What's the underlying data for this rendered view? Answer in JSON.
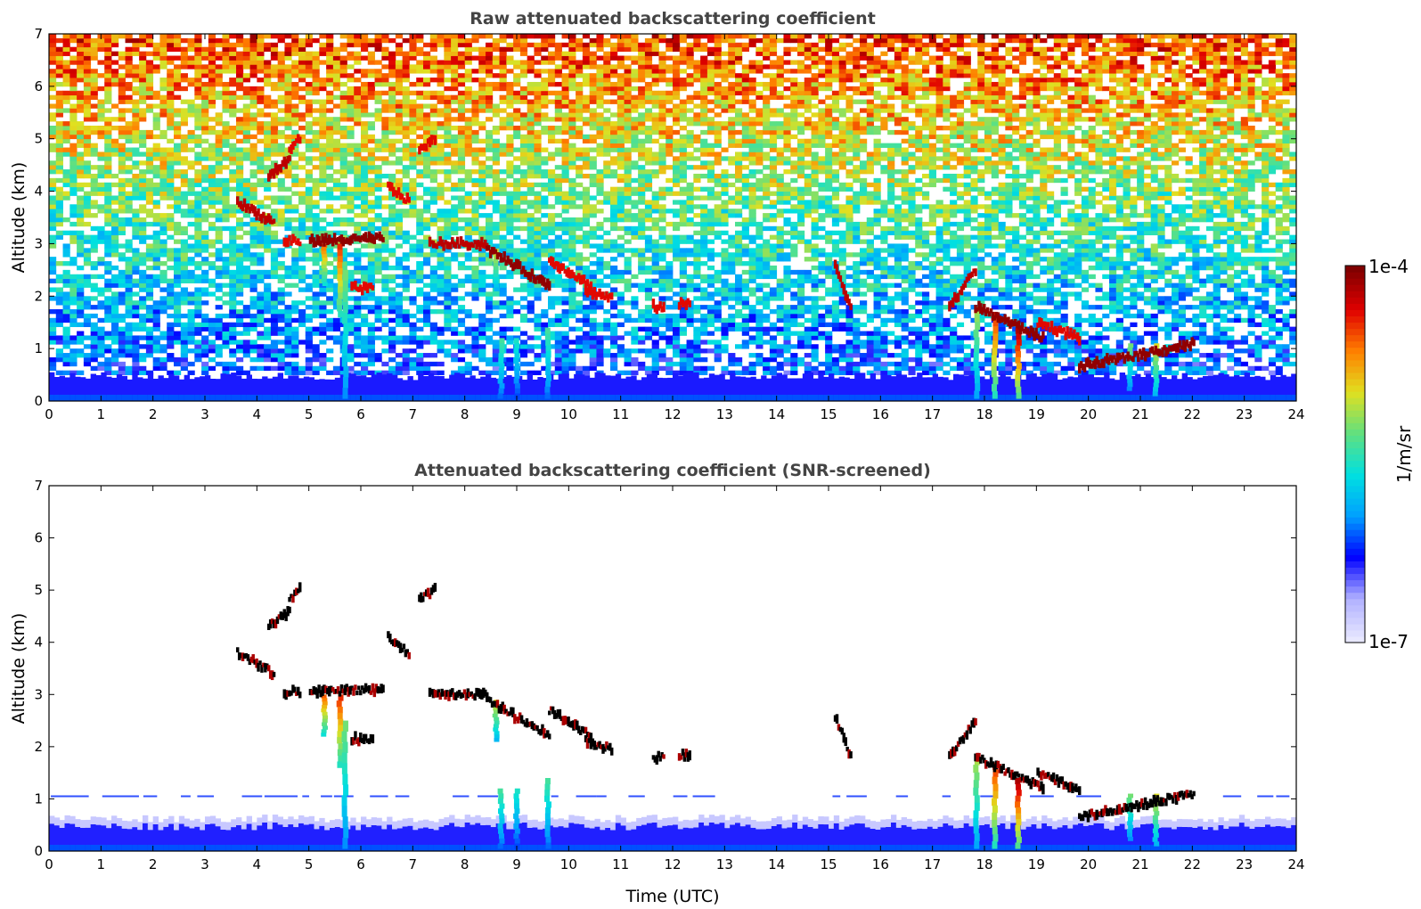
{
  "chart_data": [
    {
      "type": "heatmap",
      "title": "Raw attenuated backscattering coefficient",
      "xlabel": "",
      "ylabel": "Altitude (km)",
      "xlim": [
        0,
        24
      ],
      "ylim": [
        0,
        7
      ],
      "xticks": [
        "0",
        "1",
        "2",
        "3",
        "4",
        "5",
        "6",
        "7",
        "8",
        "9",
        "10",
        "11",
        "12",
        "13",
        "14",
        "15",
        "16",
        "17",
        "18",
        "19",
        "20",
        "21",
        "22",
        "23",
        "24"
      ],
      "yticks": [
        "0",
        "1",
        "2",
        "3",
        "4",
        "5",
        "6",
        "7"
      ],
      "value_scale": "log",
      "background_noise": true,
      "boundary_layer_top_km": 0.5,
      "layers": [
        {
          "t": 3.6,
          "t_end": 4.3,
          "z": 3.8,
          "z_end": 3.4,
          "strength": 0.95
        },
        {
          "t": 4.2,
          "t_end": 4.6,
          "z": 4.3,
          "z_end": 4.6,
          "strength": 0.95
        },
        {
          "t": 4.6,
          "t_end": 4.8,
          "z": 4.8,
          "z_end": 5.0,
          "strength": 0.9
        },
        {
          "t": 4.5,
          "t_end": 4.8,
          "z": 3.05,
          "z_end": 3.05,
          "strength": 0.9
        },
        {
          "t": 5.0,
          "t_end": 6.4,
          "z": 3.05,
          "z_end": 3.1,
          "strength": 1.0
        },
        {
          "t": 5.8,
          "t_end": 6.2,
          "z": 2.15,
          "z_end": 2.15,
          "strength": 0.9
        },
        {
          "t": 6.5,
          "t_end": 6.9,
          "z": 4.1,
          "z_end": 3.8,
          "strength": 0.9
        },
        {
          "t": 7.1,
          "t_end": 7.4,
          "z": 4.8,
          "z_end": 5.0,
          "strength": 0.9
        },
        {
          "t": 7.3,
          "t_end": 8.4,
          "z": 3.0,
          "z_end": 3.0,
          "strength": 0.95
        },
        {
          "t": 8.4,
          "t_end": 9.6,
          "z": 2.9,
          "z_end": 2.2,
          "strength": 1.0
        },
        {
          "t": 9.6,
          "t_end": 10.4,
          "z": 2.7,
          "z_end": 2.2,
          "strength": 0.9
        },
        {
          "t": 10.3,
          "t_end": 10.8,
          "z": 2.1,
          "z_end": 1.95,
          "strength": 0.9
        },
        {
          "t": 11.6,
          "t_end": 11.8,
          "z": 1.8,
          "z_end": 1.8,
          "strength": 0.9
        },
        {
          "t": 12.1,
          "t_end": 12.3,
          "z": 1.85,
          "z_end": 1.85,
          "strength": 0.9
        },
        {
          "t": 15.1,
          "t_end": 15.4,
          "z": 2.6,
          "z_end": 1.8,
          "strength": 0.95
        },
        {
          "t": 17.3,
          "t_end": 17.8,
          "z": 1.8,
          "z_end": 2.5,
          "strength": 0.95
        },
        {
          "t": 17.8,
          "t_end": 19.1,
          "z": 1.8,
          "z_end": 1.2,
          "strength": 1.0
        },
        {
          "t": 19.0,
          "t_end": 19.8,
          "z": 1.5,
          "z_end": 1.2,
          "strength": 0.9
        },
        {
          "t": 19.8,
          "t_end": 22.0,
          "z": 0.65,
          "z_end": 1.1,
          "strength": 1.0
        }
      ],
      "fallstreaks": [
        {
          "t": 5.3,
          "z_top": 3.0,
          "z_bottom": 2.2,
          "strength": 0.85
        },
        {
          "t": 5.6,
          "z_top": 3.0,
          "z_bottom": 1.6,
          "strength": 0.9
        },
        {
          "t": 5.7,
          "z_top": 2.5,
          "z_bottom": 0.05,
          "strength": 0.6
        },
        {
          "t": 8.6,
          "z_top": 2.9,
          "z_bottom": 2.1,
          "strength": 0.7
        },
        {
          "t": 8.7,
          "z_top": 1.2,
          "z_bottom": 0.05,
          "strength": 0.55
        },
        {
          "t": 9.0,
          "z_top": 1.2,
          "z_bottom": 0.05,
          "strength": 0.5
        },
        {
          "t": 9.6,
          "z_top": 1.4,
          "z_bottom": 0.05,
          "strength": 0.55
        },
        {
          "t": 17.85,
          "z_top": 1.8,
          "z_bottom": 0.05,
          "strength": 0.65
        },
        {
          "t": 18.2,
          "z_top": 1.7,
          "z_bottom": 0.05,
          "strength": 0.9
        },
        {
          "t": 18.65,
          "z_top": 1.4,
          "z_bottom": 0.05,
          "strength": 1.0
        },
        {
          "t": 20.8,
          "z_top": 1.1,
          "z_bottom": 0.2,
          "strength": 0.6
        },
        {
          "t": 21.3,
          "z_top": 1.1,
          "z_bottom": 0.1,
          "strength": 0.7
        }
      ]
    },
    {
      "type": "heatmap",
      "title": "Attenuated backscattering coefficient (SNR-screened)",
      "xlabel": "Time (UTC)",
      "ylabel": "Altitude (km)",
      "xlim": [
        0,
        24
      ],
      "ylim": [
        0,
        7
      ],
      "xticks": [
        "0",
        "1",
        "2",
        "3",
        "4",
        "5",
        "6",
        "7",
        "8",
        "9",
        "10",
        "11",
        "12",
        "13",
        "14",
        "15",
        "16",
        "17",
        "18",
        "19",
        "20",
        "21",
        "22",
        "23",
        "24"
      ],
      "yticks": [
        "0",
        "1",
        "2",
        "3",
        "4",
        "5",
        "6",
        "7"
      ],
      "value_scale": "log",
      "background_noise": false,
      "boundary_layer_top_km": 0.5,
      "noise_line_km": 1.05,
      "cloud_cores_shown_as": "black",
      "same_layers_as_panel": 1
    }
  ],
  "colorbar": {
    "label": "1/m/sr",
    "max_label": "1e-4",
    "min_label": "1e-7",
    "colors": [
      "#e8e8ff",
      "#b0b0ff",
      "#0000ff",
      "#00a0ff",
      "#00e0e0",
      "#60e080",
      "#e0e020",
      "#ff8000",
      "#e00000",
      "#800000"
    ]
  }
}
